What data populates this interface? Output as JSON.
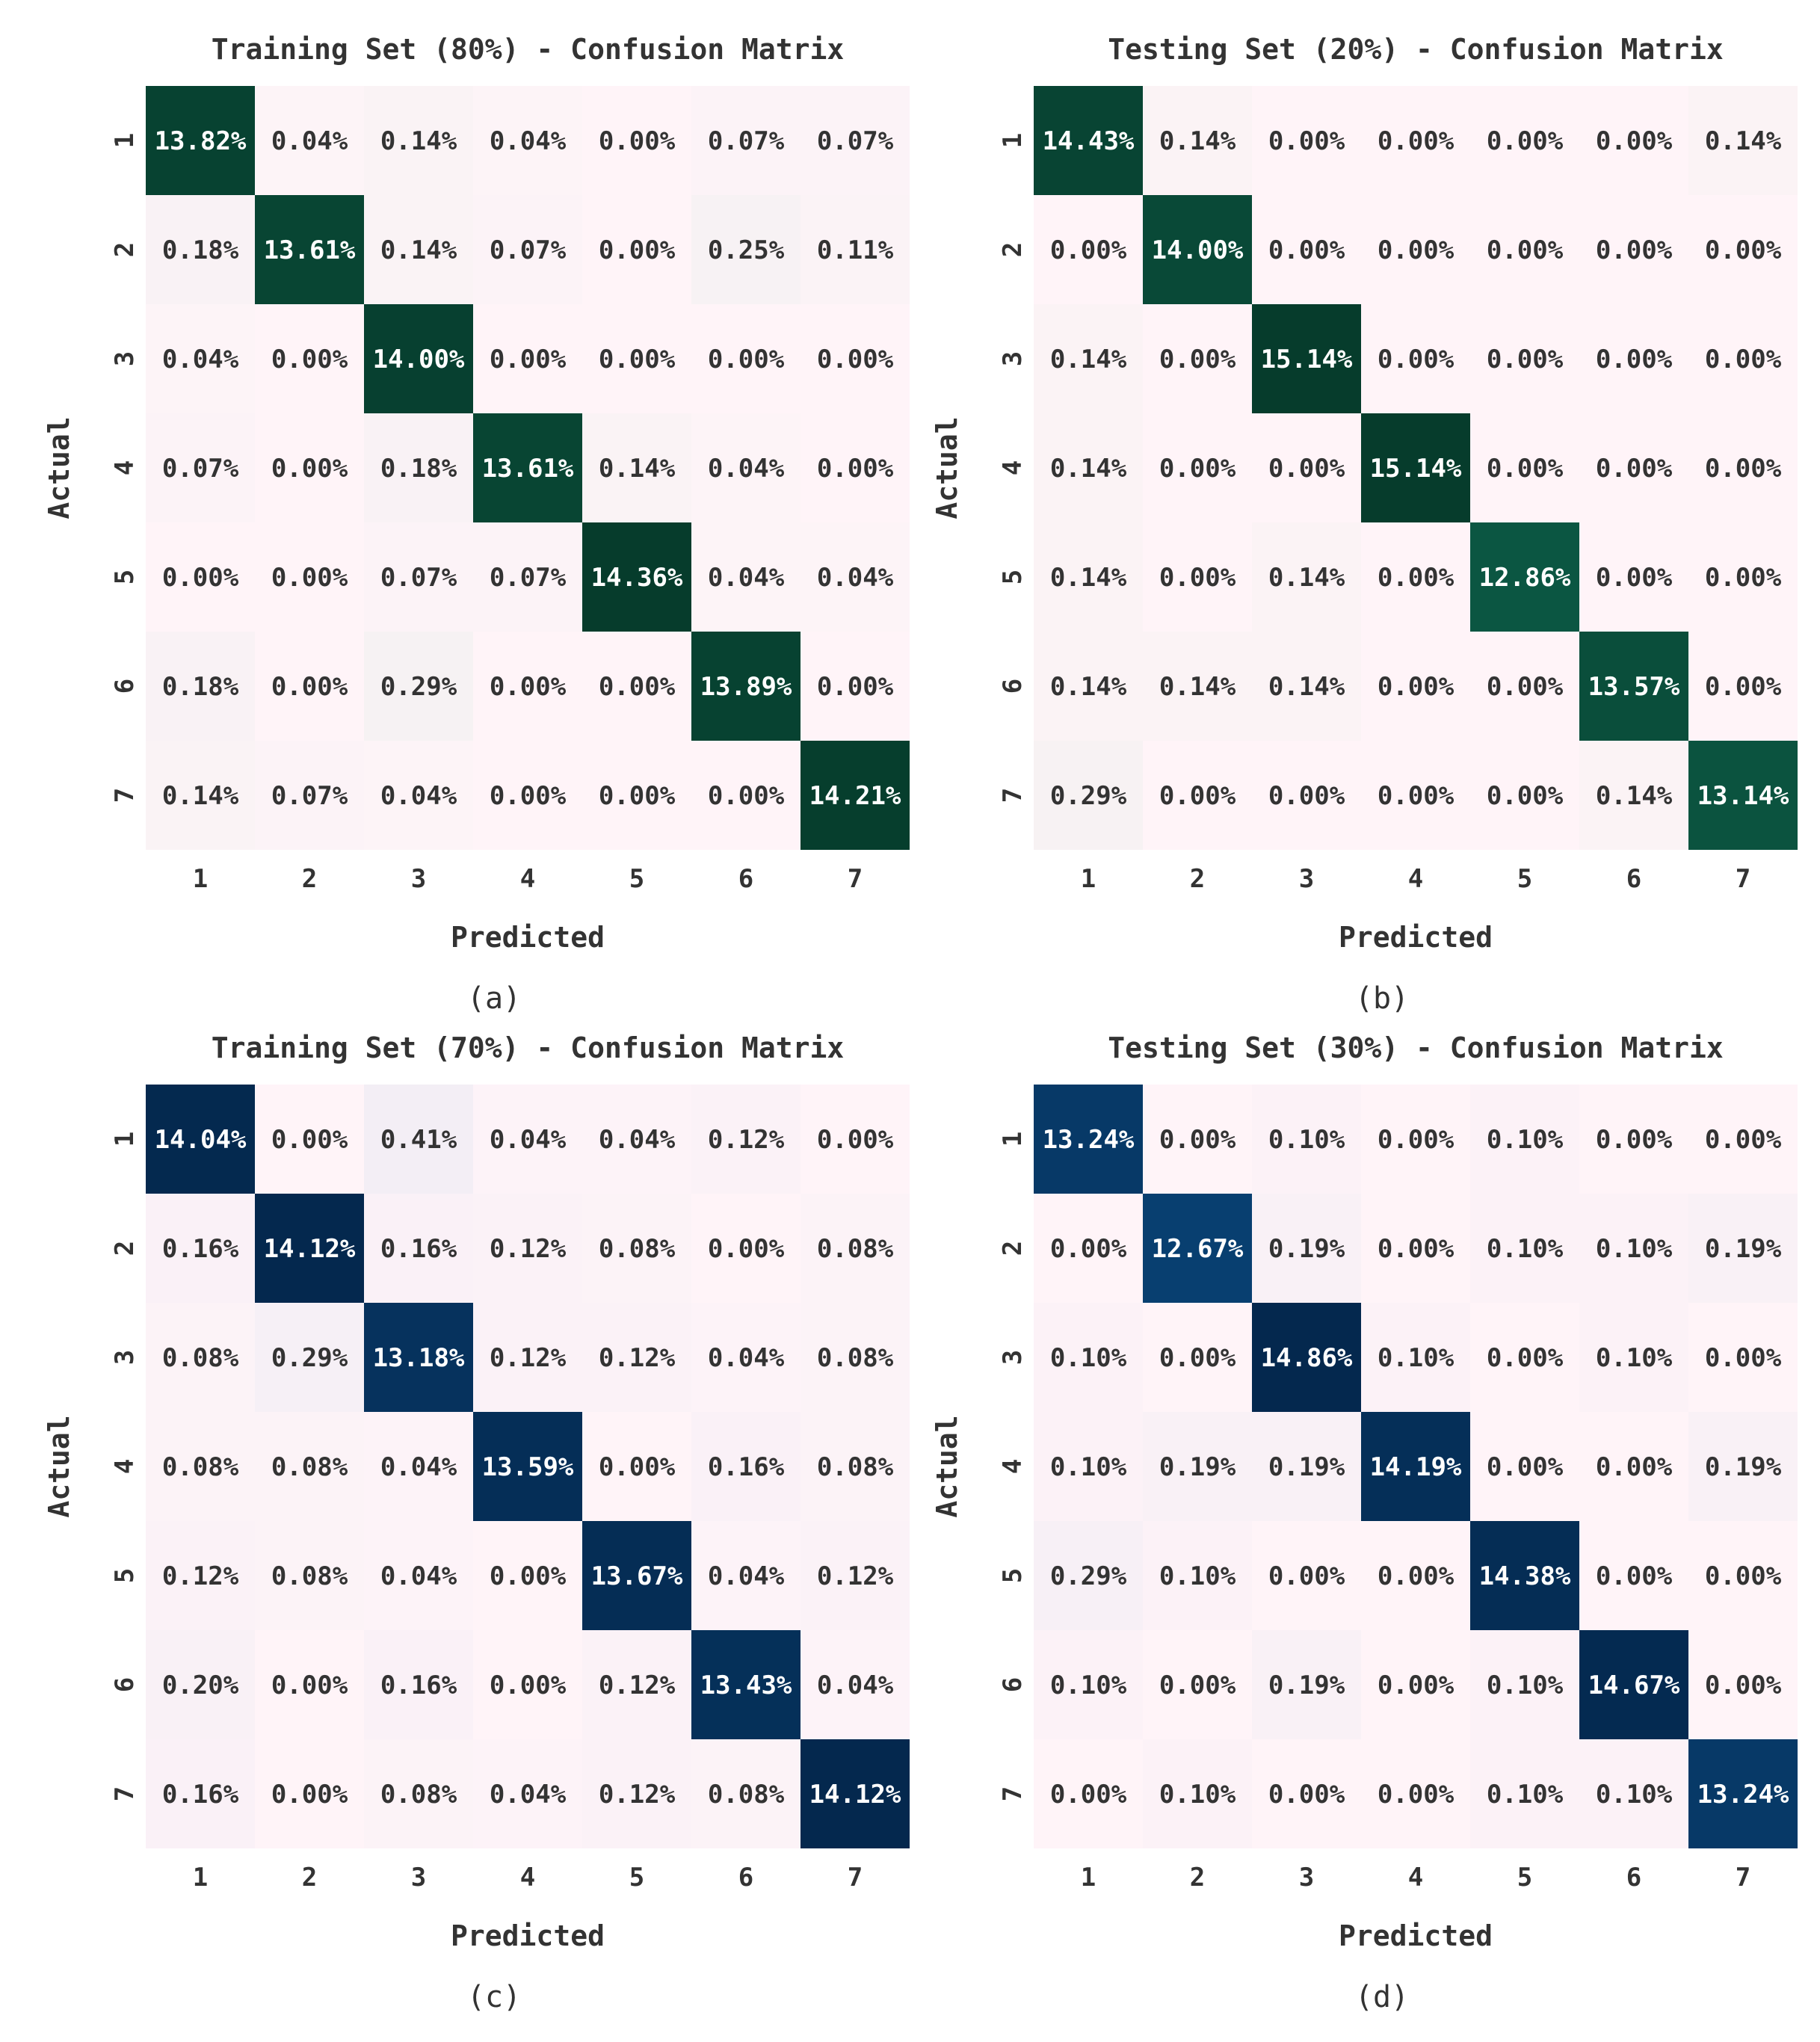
{
  "chart_data": [
    {
      "type": "heatmap",
      "caption": "(a)",
      "title": "Training Set (80%) - Confusion Matrix",
      "xlabel": "Predicted",
      "ylabel": "Actual",
      "x_ticks": [
        "1",
        "2",
        "3",
        "4",
        "5",
        "6",
        "7"
      ],
      "y_ticks": [
        "1",
        "2",
        "3",
        "4",
        "5",
        "6",
        "7"
      ],
      "colormap": "green",
      "labels": [
        [
          "13.82%",
          "0.04%",
          "0.14%",
          "0.04%",
          "0.00%",
          "0.07%",
          "0.07%"
        ],
        [
          "0.18%",
          "13.61%",
          "0.14%",
          "0.07%",
          "0.00%",
          "0.25%",
          "0.11%"
        ],
        [
          "0.04%",
          "0.00%",
          "14.00%",
          "0.00%",
          "0.00%",
          "0.00%",
          "0.00%"
        ],
        [
          "0.07%",
          "0.00%",
          "0.18%",
          "13.61%",
          "0.14%",
          "0.04%",
          "0.00%"
        ],
        [
          "0.00%",
          "0.00%",
          "0.07%",
          "0.07%",
          "14.36%",
          "0.04%",
          "0.04%"
        ],
        [
          "0.18%",
          "0.00%",
          "0.29%",
          "0.00%",
          "0.00%",
          "13.89%",
          "0.00%"
        ],
        [
          "0.14%",
          "0.07%",
          "0.04%",
          "0.00%",
          "0.00%",
          "0.00%",
          "14.21%"
        ]
      ],
      "values": [
        [
          13.82,
          0.04,
          0.14,
          0.04,
          0.0,
          0.07,
          0.07
        ],
        [
          0.18,
          13.61,
          0.14,
          0.07,
          0.0,
          0.25,
          0.11
        ],
        [
          0.04,
          0.0,
          14.0,
          0.0,
          0.0,
          0.0,
          0.0
        ],
        [
          0.07,
          0.0,
          0.18,
          13.61,
          0.14,
          0.04,
          0.0
        ],
        [
          0.0,
          0.0,
          0.07,
          0.07,
          14.36,
          0.04,
          0.04
        ],
        [
          0.18,
          0.0,
          0.29,
          0.0,
          0.0,
          13.89,
          0.0
        ],
        [
          0.14,
          0.07,
          0.04,
          0.0,
          0.0,
          0.0,
          14.21
        ]
      ]
    },
    {
      "type": "heatmap",
      "caption": "(b)",
      "title": "Testing Set (20%) - Confusion Matrix",
      "xlabel": "Predicted",
      "ylabel": "Actual",
      "x_ticks": [
        "1",
        "2",
        "3",
        "4",
        "5",
        "6",
        "7"
      ],
      "y_ticks": [
        "1",
        "2",
        "3",
        "4",
        "5",
        "6",
        "7"
      ],
      "colormap": "green",
      "labels": [
        [
          "14.43%",
          "0.14%",
          "0.00%",
          "0.00%",
          "0.00%",
          "0.00%",
          "0.14%"
        ],
        [
          "0.00%",
          "14.00%",
          "0.00%",
          "0.00%",
          "0.00%",
          "0.00%",
          "0.00%"
        ],
        [
          "0.14%",
          "0.00%",
          "15.14%",
          "0.00%",
          "0.00%",
          "0.00%",
          "0.00%"
        ],
        [
          "0.14%",
          "0.00%",
          "0.00%",
          "15.14%",
          "0.00%",
          "0.00%",
          "0.00%"
        ],
        [
          "0.14%",
          "0.00%",
          "0.14%",
          "0.00%",
          "12.86%",
          "0.00%",
          "0.00%"
        ],
        [
          "0.14%",
          "0.14%",
          "0.14%",
          "0.00%",
          "0.00%",
          "13.57%",
          "0.00%"
        ],
        [
          "0.29%",
          "0.00%",
          "0.00%",
          "0.00%",
          "0.00%",
          "0.14%",
          "13.14%"
        ]
      ],
      "values": [
        [
          14.43,
          0.14,
          0.0,
          0.0,
          0.0,
          0.0,
          0.14
        ],
        [
          0.0,
          14.0,
          0.0,
          0.0,
          0.0,
          0.0,
          0.0
        ],
        [
          0.14,
          0.0,
          15.14,
          0.0,
          0.0,
          0.0,
          0.0
        ],
        [
          0.14,
          0.0,
          0.0,
          15.14,
          0.0,
          0.0,
          0.0
        ],
        [
          0.14,
          0.0,
          0.14,
          0.0,
          12.86,
          0.0,
          0.0
        ],
        [
          0.14,
          0.14,
          0.14,
          0.0,
          0.0,
          13.57,
          0.0
        ],
        [
          0.29,
          0.0,
          0.0,
          0.0,
          0.0,
          0.14,
          13.14
        ]
      ]
    },
    {
      "type": "heatmap",
      "caption": "(c)",
      "title": "Training Set (70%) - Confusion Matrix",
      "xlabel": "Predicted",
      "ylabel": "Actual",
      "x_ticks": [
        "1",
        "2",
        "3",
        "4",
        "5",
        "6",
        "7"
      ],
      "y_ticks": [
        "1",
        "2",
        "3",
        "4",
        "5",
        "6",
        "7"
      ],
      "colormap": "blue",
      "labels": [
        [
          "14.04%",
          "0.00%",
          "0.41%",
          "0.04%",
          "0.04%",
          "0.12%",
          "0.00%"
        ],
        [
          "0.16%",
          "14.12%",
          "0.16%",
          "0.12%",
          "0.08%",
          "0.00%",
          "0.08%"
        ],
        [
          "0.08%",
          "0.29%",
          "13.18%",
          "0.12%",
          "0.12%",
          "0.04%",
          "0.08%"
        ],
        [
          "0.08%",
          "0.08%",
          "0.04%",
          "13.59%",
          "0.00%",
          "0.16%",
          "0.08%"
        ],
        [
          "0.12%",
          "0.08%",
          "0.04%",
          "0.00%",
          "13.67%",
          "0.04%",
          "0.12%"
        ],
        [
          "0.20%",
          "0.00%",
          "0.16%",
          "0.00%",
          "0.12%",
          "13.43%",
          "0.04%"
        ],
        [
          "0.16%",
          "0.00%",
          "0.08%",
          "0.04%",
          "0.12%",
          "0.08%",
          "14.12%"
        ]
      ],
      "values": [
        [
          14.04,
          0.0,
          0.41,
          0.04,
          0.04,
          0.12,
          0.0
        ],
        [
          0.16,
          14.12,
          0.16,
          0.12,
          0.08,
          0.0,
          0.08
        ],
        [
          0.08,
          0.29,
          13.18,
          0.12,
          0.12,
          0.04,
          0.08
        ],
        [
          0.08,
          0.08,
          0.04,
          13.59,
          0.0,
          0.16,
          0.08
        ],
        [
          0.12,
          0.08,
          0.04,
          0.0,
          13.67,
          0.04,
          0.12
        ],
        [
          0.2,
          0.0,
          0.16,
          0.0,
          0.12,
          13.43,
          0.04
        ],
        [
          0.16,
          0.0,
          0.08,
          0.04,
          0.12,
          0.08,
          14.12
        ]
      ]
    },
    {
      "type": "heatmap",
      "caption": "(d)",
      "title": "Testing Set (30%) - Confusion Matrix",
      "xlabel": "Predicted",
      "ylabel": "Actual",
      "x_ticks": [
        "1",
        "2",
        "3",
        "4",
        "5",
        "6",
        "7"
      ],
      "y_ticks": [
        "1",
        "2",
        "3",
        "4",
        "5",
        "6",
        "7"
      ],
      "colormap": "blue",
      "labels": [
        [
          "13.24%",
          "0.00%",
          "0.10%",
          "0.00%",
          "0.10%",
          "0.00%",
          "0.00%"
        ],
        [
          "0.00%",
          "12.67%",
          "0.19%",
          "0.00%",
          "0.10%",
          "0.10%",
          "0.19%"
        ],
        [
          "0.10%",
          "0.00%",
          "14.86%",
          "0.10%",
          "0.00%",
          "0.10%",
          "0.00%"
        ],
        [
          "0.10%",
          "0.19%",
          "0.19%",
          "14.19%",
          "0.00%",
          "0.00%",
          "0.19%"
        ],
        [
          "0.29%",
          "0.10%",
          "0.00%",
          "0.00%",
          "14.38%",
          "0.00%",
          "0.00%"
        ],
        [
          "0.10%",
          "0.00%",
          "0.19%",
          "0.00%",
          "0.10%",
          "14.67%",
          "0.00%"
        ],
        [
          "0.00%",
          "0.10%",
          "0.00%",
          "0.00%",
          "0.10%",
          "0.10%",
          "13.24%"
        ]
      ],
      "values": [
        [
          13.24,
          0.0,
          0.1,
          0.0,
          0.1,
          0.0,
          0.0
        ],
        [
          0.0,
          12.67,
          0.19,
          0.0,
          0.1,
          0.1,
          0.19
        ],
        [
          0.1,
          0.0,
          14.86,
          0.1,
          0.0,
          0.1,
          0.0
        ],
        [
          0.1,
          0.19,
          0.19,
          14.19,
          0.0,
          0.0,
          0.19
        ],
        [
          0.29,
          0.1,
          0.0,
          0.0,
          14.38,
          0.0,
          0.0
        ],
        [
          0.1,
          0.0,
          0.19,
          0.0,
          0.1,
          14.67,
          0.0
        ],
        [
          0.0,
          0.1,
          0.0,
          0.0,
          0.1,
          0.1,
          13.24
        ]
      ]
    }
  ]
}
